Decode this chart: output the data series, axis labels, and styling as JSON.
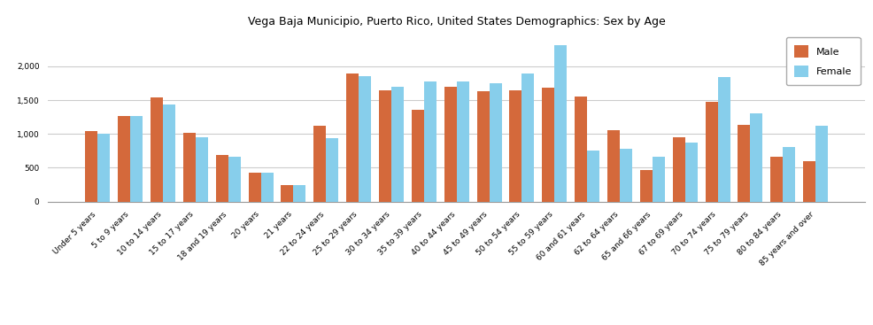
{
  "title": "Vega Baja Municipio, Puerto Rico, United States Demographics: Sex by Age",
  "categories": [
    "Under 5 years",
    "5 to 9 years",
    "10 to 14 years",
    "15 to 17 years",
    "18 and 19 years",
    "20 years",
    "21 years",
    "22 to 24 years",
    "25 to 29 years",
    "30 to 34 years",
    "35 to 39 years",
    "40 to 44 years",
    "45 to 49 years",
    "50 to 54 years",
    "55 to 59 years",
    "60 and 61 years",
    "62 to 64 years",
    "65 and 66 years",
    "67 to 69 years",
    "70 to 74 years",
    "75 to 79 years",
    "80 to 84 years",
    "85 years and over"
  ],
  "male": [
    1040,
    1260,
    1540,
    1020,
    690,
    420,
    240,
    1120,
    1890,
    1640,
    1360,
    1700,
    1630,
    1640,
    1680,
    1550,
    1050,
    460,
    950,
    1480,
    1130,
    660,
    600
  ],
  "female": [
    1000,
    1260,
    1440,
    950,
    660,
    420,
    240,
    940,
    1850,
    1700,
    1780,
    1780,
    1750,
    1900,
    2310,
    760,
    780,
    660,
    870,
    1840,
    1310,
    800,
    1120
  ],
  "male_color": "#d4693b",
  "female_color": "#87ceeb",
  "ylim": [
    0,
    2500
  ],
  "yticks": [
    0,
    500,
    1000,
    1500,
    2000
  ],
  "title_fontsize": 9,
  "tick_fontsize": 6.5,
  "bar_width": 0.38
}
